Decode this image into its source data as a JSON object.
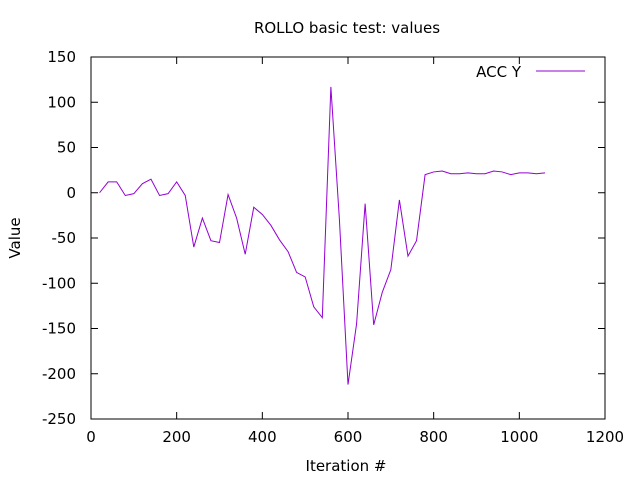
{
  "chart_data": {
    "type": "line",
    "title": "ROLLO  basic test: values",
    "xlabel": "Iteration #",
    "ylabel": "Value",
    "xlim": [
      0,
      1200
    ],
    "ylim": [
      -250,
      150
    ],
    "xticks": [
      0,
      200,
      400,
      600,
      800,
      1000,
      1200
    ],
    "yticks": [
      -250,
      -200,
      -150,
      -100,
      -50,
      0,
      50,
      100,
      150
    ],
    "grid": false,
    "legend_placement": "top-right",
    "series": [
      {
        "name": "ACC Y",
        "color": "#9400d3",
        "x": [
          20,
          40,
          60,
          80,
          100,
          120,
          140,
          160,
          180,
          200,
          220,
          240,
          260,
          280,
          300,
          320,
          340,
          360,
          380,
          400,
          420,
          440,
          460,
          480,
          500,
          520,
          540,
          560,
          580,
          600,
          620,
          640,
          660,
          680,
          700,
          720,
          740,
          760,
          780,
          800,
          820,
          840,
          860,
          880,
          900,
          920,
          940,
          960,
          980,
          1000,
          1020,
          1040,
          1060
        ],
        "y": [
          0,
          12,
          12,
          -3,
          -1,
          10,
          15,
          -3,
          -1,
          12,
          -3,
          -60,
          -28,
          -53,
          -55,
          -2,
          -28,
          -68,
          -16,
          -24,
          -36,
          -52,
          -65,
          -88,
          -93,
          -126,
          -138,
          117,
          -30,
          -212,
          -145,
          -12,
          -146,
          -110,
          -85,
          -8,
          -70,
          -53,
          20,
          23,
          24,
          21,
          21,
          22,
          21,
          21,
          24,
          23,
          20,
          22,
          22,
          21,
          22
        ]
      }
    ]
  }
}
